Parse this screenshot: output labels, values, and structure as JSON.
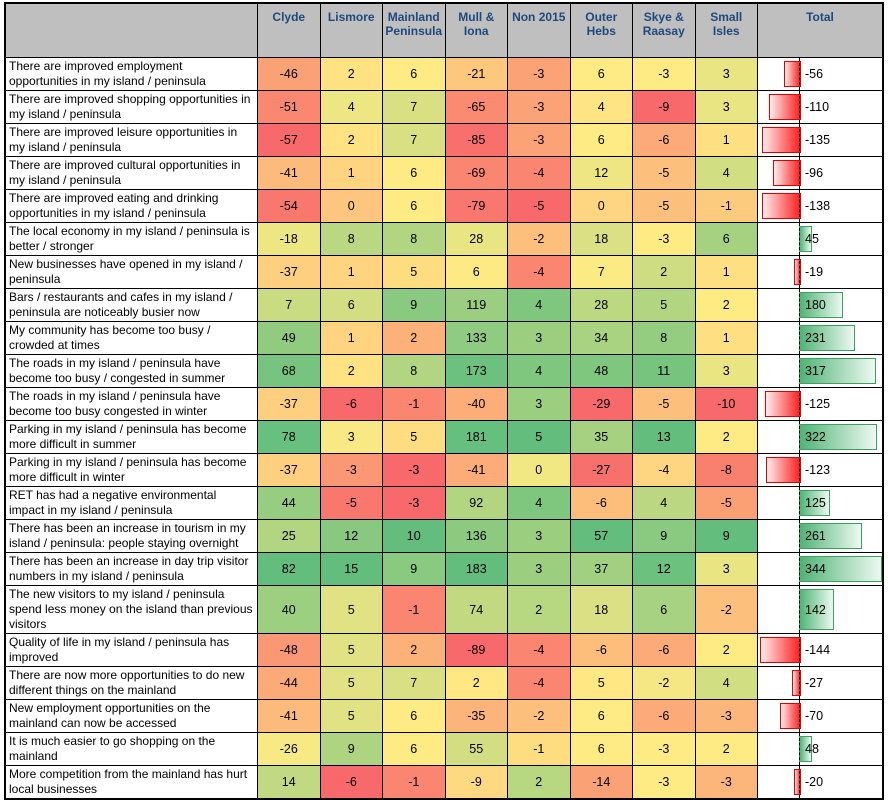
{
  "chart_data": {
    "type": "heatmap",
    "title": "",
    "columns": [
      "Clyde",
      "Lismore",
      "Mainland Peninsula",
      "Mull & Iona",
      "Non 2015",
      "Outer Hebs",
      "Skye & Raasay",
      "Small Isles"
    ],
    "total_column_label": "Total",
    "rows": [
      {
        "label": "There are improved employment opportunities in my island / peninsula",
        "values": [
          -46,
          2,
          6,
          -21,
          -3,
          6,
          -3,
          3
        ],
        "total": -56
      },
      {
        "label": "There are improved shopping opportunities in my island / peninsula",
        "values": [
          -51,
          4,
          7,
          -65,
          -3,
          4,
          -9,
          3
        ],
        "total": -110
      },
      {
        "label": "There are improved leisure opportunities in my island / peninsula",
        "values": [
          -57,
          2,
          7,
          -85,
          -3,
          6,
          -6,
          1
        ],
        "total": -135
      },
      {
        "label": "There are improved cultural opportunities in my island / peninsula",
        "values": [
          -41,
          1,
          6,
          -69,
          -4,
          12,
          -5,
          4
        ],
        "total": -96
      },
      {
        "label": "There are improved eating and drinking opportunities in my island / peninsula",
        "values": [
          -54,
          0,
          6,
          -79,
          -5,
          0,
          -5,
          -1
        ],
        "total": -138
      },
      {
        "label": "The local economy in my island / peninsula is better / stronger",
        "values": [
          -18,
          8,
          8,
          28,
          -2,
          18,
          -3,
          6
        ],
        "total": 45
      },
      {
        "label": "New businesses have opened in my island / peninsula",
        "values": [
          -37,
          1,
          5,
          6,
          -4,
          7,
          2,
          1
        ],
        "total": -19
      },
      {
        "label": "Bars / restaurants and cafes in my island / peninsula are noticeably busier now",
        "values": [
          7,
          6,
          9,
          119,
          4,
          28,
          5,
          2
        ],
        "total": 180
      },
      {
        "label": "My community has become too busy / crowded at times",
        "values": [
          49,
          1,
          2,
          133,
          3,
          34,
          8,
          1
        ],
        "total": 231
      },
      {
        "label": "The roads in my island / peninsula have become too busy / congested in summer",
        "values": [
          68,
          2,
          8,
          173,
          4,
          48,
          11,
          3
        ],
        "total": 317
      },
      {
        "label": "The roads in my island / peninsula have become too busy  congested in winter",
        "values": [
          -37,
          -6,
          -1,
          -40,
          3,
          -29,
          -5,
          -10
        ],
        "total": -125
      },
      {
        "label": "Parking in my island / peninsula has become more difficult in summer",
        "values": [
          78,
          3,
          5,
          181,
          5,
          35,
          13,
          2
        ],
        "total": 322
      },
      {
        "label": "Parking in my island / peninsula has become more difficult in winter",
        "values": [
          -37,
          -3,
          -3,
          -41,
          0,
          -27,
          -4,
          -8
        ],
        "total": -123
      },
      {
        "label": "RET has had a negative environmental impact in my island / peninsula",
        "values": [
          44,
          -5,
          -3,
          92,
          4,
          -6,
          4,
          -5
        ],
        "total": 125
      },
      {
        "label": "There has been an increase in tourism in my island / peninsula: people staying overnight",
        "values": [
          25,
          12,
          10,
          136,
          3,
          57,
          9,
          9
        ],
        "total": 261
      },
      {
        "label": "There has been an increase in day trip visitor numbers in my island / peninsula",
        "values": [
          82,
          15,
          9,
          183,
          3,
          37,
          12,
          3
        ],
        "total": 344
      },
      {
        "label": "The new visitors to my island / peninsula spend less money on the island than previous visitors",
        "values": [
          40,
          5,
          -1,
          74,
          2,
          18,
          6,
          -2
        ],
        "total": 142
      },
      {
        "label": "Quality of life in my island / peninsula has improved",
        "values": [
          -48,
          5,
          2,
          -89,
          -4,
          -6,
          -6,
          2
        ],
        "total": -144
      },
      {
        "label": "There are now more opportunities to do new different things on the mainland",
        "values": [
          -44,
          5,
          7,
          2,
          -4,
          5,
          -2,
          4
        ],
        "total": -27
      },
      {
        "label": "New employment opportunities on the mainland can now be accessed",
        "values": [
          -41,
          5,
          6,
          -35,
          -2,
          6,
          -6,
          -3
        ],
        "total": -70
      },
      {
        "label": "It is much easier to go shopping on the mainland",
        "values": [
          -26,
          9,
          6,
          55,
          -1,
          6,
          -3,
          2
        ],
        "total": 48
      },
      {
        "label": "More competition from the mainland has hurt local businesses",
        "values": [
          14,
          -6,
          -1,
          -9,
          2,
          -14,
          -3,
          -3
        ],
        "total": -20
      }
    ],
    "color_scale": {
      "min_color": "#F8696B",
      "mid_color": "#FFEB84",
      "max_color": "#63BE7E",
      "midpoint": "50th-percentile-per-column"
    },
    "total_bars": {
      "axis_style": "dashed",
      "negative_min": -144,
      "positive_max": 344,
      "negative_border": "#E00000",
      "negative_fill": "#FF1F1F",
      "positive_border": "#3DA05F",
      "positive_fill": "#4FB476"
    },
    "header_bg": "#BFBFBF",
    "header_text_color": "#1F497D",
    "grid": "on",
    "legend": "none"
  }
}
